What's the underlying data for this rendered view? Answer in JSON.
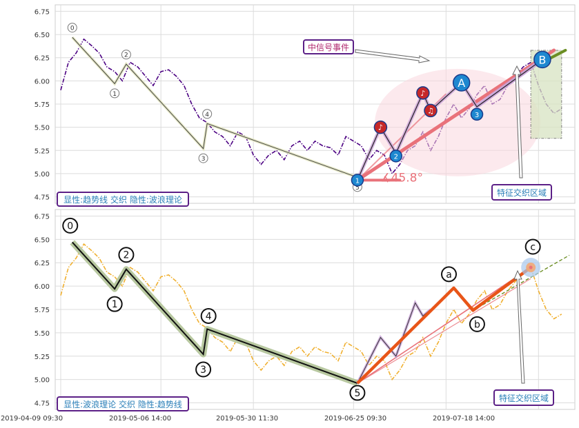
{
  "chart_data": [
    {
      "type": "line",
      "panel": "top",
      "ylim": [
        4.68,
        6.82
      ],
      "yticks": [
        "4.75",
        "5.00",
        "5.25",
        "5.50",
        "5.75",
        "6.00",
        "6.25",
        "6.50",
        "6.75"
      ],
      "grid": true,
      "series": [
        {
          "style": "dash-dot",
          "color": "#4b0082",
          "points": [
            [
              0,
              5.9
            ],
            [
              2,
              6.2
            ],
            [
              4,
              6.3
            ],
            [
              6,
              6.45
            ],
            [
              8,
              6.38
            ],
            [
              10,
              6.3
            ],
            [
              12,
              6.15
            ],
            [
              14,
              6.1
            ],
            [
              16,
              6.0
            ],
            [
              18,
              6.2
            ],
            [
              20,
              6.15
            ],
            [
              22,
              6.05
            ],
            [
              24,
              5.95
            ],
            [
              26,
              6.1
            ],
            [
              28,
              6.12
            ],
            [
              30,
              6.05
            ],
            [
              32,
              5.95
            ],
            [
              34,
              5.75
            ],
            [
              36,
              5.6
            ],
            [
              38,
              5.55
            ],
            [
              40,
              5.45
            ],
            [
              42,
              5.4
            ],
            [
              44,
              5.3
            ],
            [
              46,
              5.45
            ],
            [
              48,
              5.4
            ],
            [
              50,
              5.2
            ],
            [
              52,
              5.1
            ],
            [
              54,
              5.2
            ],
            [
              56,
              5.25
            ],
            [
              58,
              5.15
            ],
            [
              60,
              5.3
            ],
            [
              62,
              5.35
            ],
            [
              64,
              5.25
            ],
            [
              66,
              5.35
            ],
            [
              68,
              5.3
            ],
            [
              70,
              5.28
            ],
            [
              72,
              5.2
            ],
            [
              74,
              5.4
            ],
            [
              76,
              5.35
            ],
            [
              78,
              5.3
            ],
            [
              80,
              5.15
            ],
            [
              82,
              5.25
            ],
            [
              84,
              5.2
            ],
            [
              86,
              5.0
            ],
            [
              88,
              5.1
            ],
            [
              90,
              5.25
            ],
            [
              92,
              5.3
            ],
            [
              94,
              5.45
            ],
            [
              96,
              5.25
            ],
            [
              98,
              5.4
            ],
            [
              100,
              5.6
            ],
            [
              102,
              5.75
            ],
            [
              104,
              5.6
            ],
            [
              106,
              5.7
            ],
            [
              108,
              5.85
            ],
            [
              110,
              5.95
            ],
            [
              112,
              5.75
            ],
            [
              114,
              5.8
            ],
            [
              116,
              5.95
            ],
            [
              118,
              6.05
            ],
            [
              120,
              6.15
            ],
            [
              122,
              6.2
            ],
            [
              124,
              5.95
            ],
            [
              126,
              5.75
            ],
            [
              128,
              5.65
            ],
            [
              130,
              5.7
            ]
          ]
        }
      ],
      "wave_points": [
        {
          "label": "0",
          "x": 3,
          "y": 6.47
        },
        {
          "label": "1",
          "x": 14,
          "y": 5.97
        },
        {
          "label": "2",
          "x": 17,
          "y": 6.18
        },
        {
          "label": "3",
          "x": 37,
          "y": 5.27
        },
        {
          "label": "4",
          "x": 38,
          "y": 5.54
        },
        {
          "label": "5",
          "x": 77,
          "y": 4.96
        }
      ],
      "trend_points": [
        {
          "label": "1",
          "x": 77,
          "y": 4.93
        },
        {
          "label": "2",
          "x": 87,
          "y": 5.19
        },
        {
          "label": "3",
          "x": 108,
          "y": 5.64
        },
        {
          "label": "A",
          "x": 104,
          "y": 5.98
        },
        {
          "label": "B",
          "x": 125,
          "y": 6.23
        }
      ],
      "event_markers": [
        {
          "x": 83,
          "y": 5.5,
          "glyph": "♪"
        },
        {
          "x": 94,
          "y": 5.87,
          "glyph": "♪"
        },
        {
          "x": 96,
          "y": 5.68,
          "glyph": "♫"
        }
      ],
      "angle_label": "∡45.8°",
      "event_label": "中信号事件",
      "zone_label": "特征交织区域",
      "caption": "显性:趋势线 交织 隐性:波浪理论"
    },
    {
      "type": "line",
      "panel": "bottom",
      "ylim": [
        4.68,
        6.82
      ],
      "yticks": [
        "4.75",
        "5.00",
        "5.25",
        "5.50",
        "5.75",
        "6.00",
        "6.25",
        "6.50",
        "6.75"
      ],
      "grid": true,
      "xticks": [
        "2019-04-09 09:30",
        "2019-05-06 14:00",
        "2019-05-30 11:30",
        "2019-06-25 09:30",
        "2019-07-18 14:00"
      ],
      "series": [
        {
          "style": "dash-dot",
          "color": "#f0b030",
          "points": [
            [
              0,
              5.9
            ],
            [
              2,
              6.2
            ],
            [
              4,
              6.3
            ],
            [
              6,
              6.45
            ],
            [
              8,
              6.38
            ],
            [
              10,
              6.3
            ],
            [
              12,
              6.15
            ],
            [
              14,
              6.1
            ],
            [
              16,
              6.0
            ],
            [
              18,
              6.2
            ],
            [
              20,
              6.15
            ],
            [
              22,
              6.05
            ],
            [
              24,
              5.95
            ],
            [
              26,
              6.1
            ],
            [
              28,
              6.12
            ],
            [
              30,
              6.05
            ],
            [
              32,
              5.95
            ],
            [
              34,
              5.75
            ],
            [
              36,
              5.6
            ],
            [
              38,
              5.55
            ],
            [
              40,
              5.45
            ],
            [
              42,
              5.4
            ],
            [
              44,
              5.3
            ],
            [
              46,
              5.45
            ],
            [
              48,
              5.4
            ],
            [
              50,
              5.2
            ],
            [
              52,
              5.1
            ],
            [
              54,
              5.2
            ],
            [
              56,
              5.25
            ],
            [
              58,
              5.15
            ],
            [
              60,
              5.3
            ],
            [
              62,
              5.35
            ],
            [
              64,
              5.25
            ],
            [
              66,
              5.35
            ],
            [
              68,
              5.3
            ],
            [
              70,
              5.28
            ],
            [
              72,
              5.2
            ],
            [
              74,
              5.4
            ],
            [
              76,
              5.35
            ],
            [
              78,
              5.3
            ],
            [
              80,
              5.15
            ],
            [
              82,
              5.25
            ],
            [
              84,
              5.2
            ],
            [
              86,
              5.0
            ],
            [
              88,
              5.1
            ],
            [
              90,
              5.25
            ],
            [
              92,
              5.3
            ],
            [
              94,
              5.45
            ],
            [
              96,
              5.25
            ],
            [
              98,
              5.4
            ],
            [
              100,
              5.6
            ],
            [
              102,
              5.75
            ],
            [
              104,
              5.6
            ],
            [
              106,
              5.7
            ],
            [
              108,
              5.85
            ],
            [
              110,
              5.95
            ],
            [
              112,
              5.75
            ],
            [
              114,
              5.8
            ],
            [
              116,
              5.95
            ],
            [
              118,
              6.05
            ],
            [
              120,
              6.15
            ],
            [
              122,
              6.2
            ],
            [
              124,
              5.95
            ],
            [
              126,
              5.75
            ],
            [
              128,
              5.65
            ],
            [
              130,
              5.7
            ]
          ]
        }
      ],
      "wave_points": [
        {
          "label": "0",
          "x": 3,
          "y": 6.47
        },
        {
          "label": "1",
          "x": 14,
          "y": 5.97
        },
        {
          "label": "2",
          "x": 17,
          "y": 6.18
        },
        {
          "label": "3",
          "x": 37,
          "y": 5.27
        },
        {
          "label": "4",
          "x": 38,
          "y": 5.54
        },
        {
          "label": "5",
          "x": 77,
          "y": 4.96
        }
      ],
      "abc_points": [
        {
          "label": "a",
          "x": 102,
          "y": 5.98
        },
        {
          "label": "b",
          "x": 107,
          "y": 5.74
        },
        {
          "label": "c",
          "x": 122,
          "y": 6.2
        }
      ],
      "zone_label": "特征交织区域",
      "caption": "显性:波浪理论 交织 隐性:趋势线"
    }
  ],
  "colors": {
    "top_series": "#4b0082",
    "bottom_series": "#f0b030",
    "trend_red": "#e9727a",
    "trend_green": "#6b8e23",
    "wave_dark": "#000000",
    "wave_band": "#b8c8a0",
    "abc_orange": "#e85518",
    "node_blue": "#1e88d0",
    "node_red": "#c62828",
    "caption_border": "#5b1f86",
    "caption_text": "#2a7fb8"
  }
}
